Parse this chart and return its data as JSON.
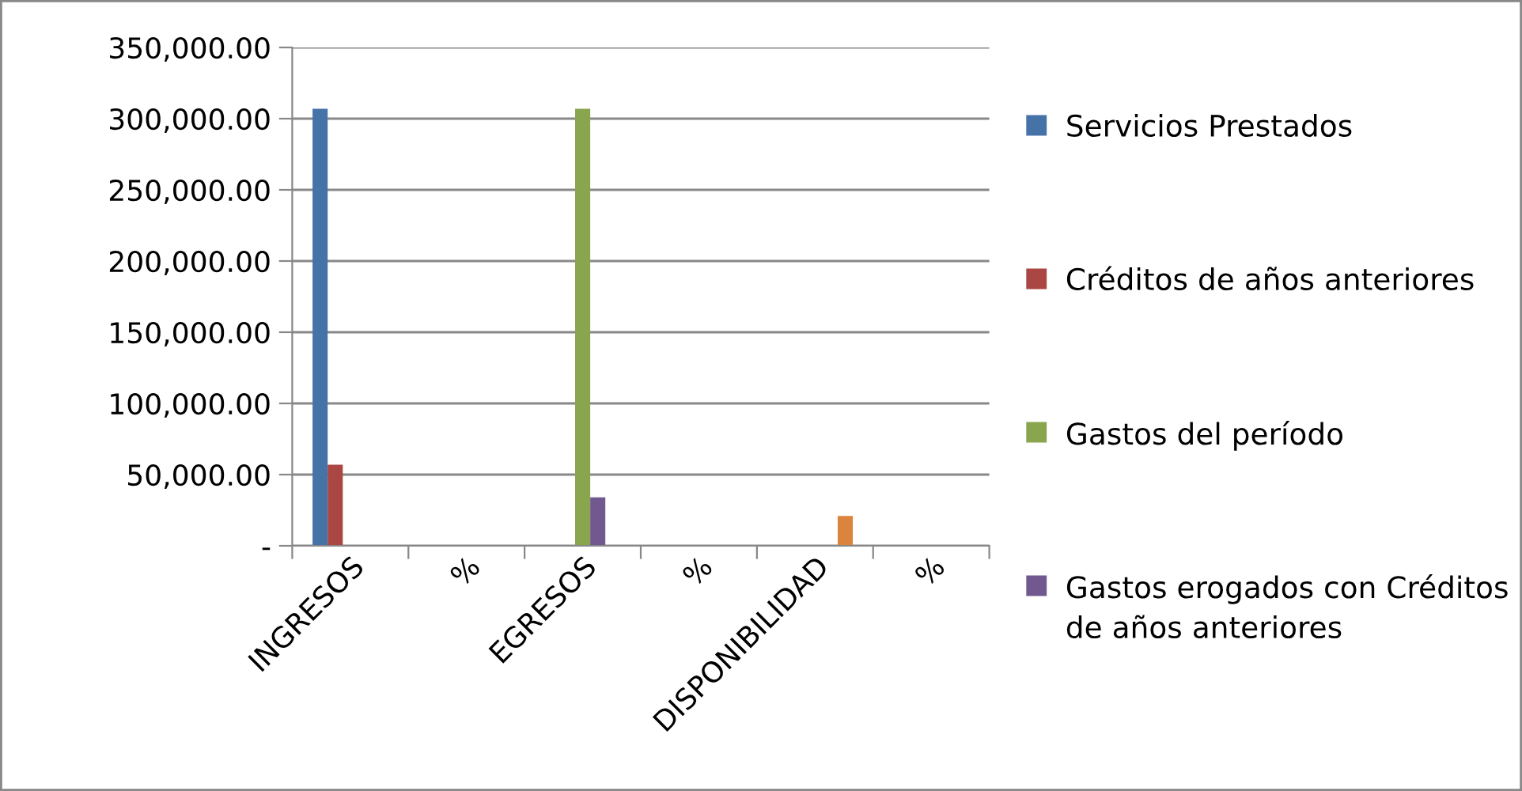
{
  "chart_data": {
    "type": "bar",
    "categories": [
      "INGRESOS",
      "%",
      "EGRESOS",
      "%",
      "DISPONIBILIDAD",
      "%"
    ],
    "series": [
      {
        "name": "Servicios Prestados",
        "color": "#4572a7",
        "values": [
          307000,
          null,
          null,
          null,
          null,
          null
        ]
      },
      {
        "name": "Créditos de años anteriores",
        "color": "#aa4643",
        "values": [
          57000,
          null,
          null,
          null,
          null,
          null
        ]
      },
      {
        "name": "Gastos del período",
        "color": "#89a54e",
        "values": [
          null,
          null,
          307000,
          null,
          null,
          null
        ]
      },
      {
        "name": "Gastos erogados con Créditos de años anteriores",
        "color": "#71588f",
        "values": [
          null,
          null,
          34000,
          null,
          null,
          null
        ]
      },
      {
        "color": "#db843d",
        "values": [
          null,
          null,
          null,
          null,
          21000,
          null
        ]
      }
    ],
    "ylim": [
      0,
      350000
    ],
    "yticks": [
      {
        "value": 0,
        "label": "-"
      },
      {
        "value": 50000,
        "label": "50,000.00"
      },
      {
        "value": 100000,
        "label": "100,000.00"
      },
      {
        "value": 150000,
        "label": "150,000.00"
      },
      {
        "value": 200000,
        "label": "200,000.00"
      },
      {
        "value": 250000,
        "label": "250,000.00"
      },
      {
        "value": 300000,
        "label": "300,000.00"
      },
      {
        "value": 350000,
        "label": "350,000.00"
      }
    ],
    "grid": "y",
    "legend": "right"
  }
}
